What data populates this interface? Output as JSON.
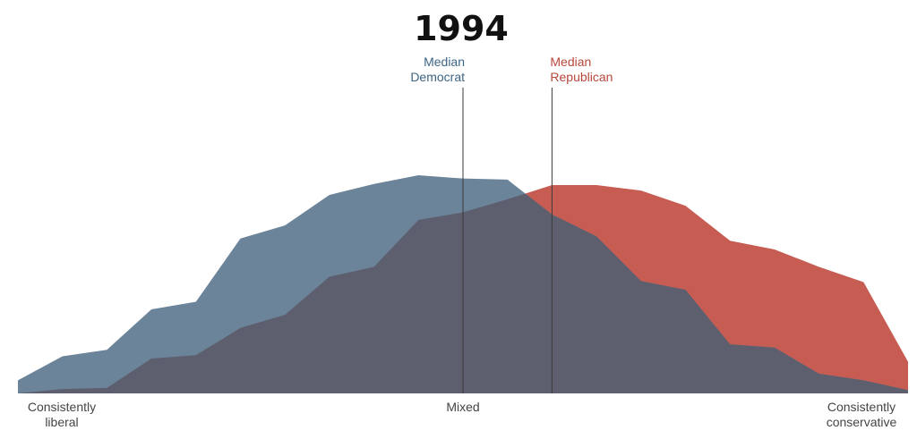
{
  "chart_data": {
    "type": "area",
    "title": "1994",
    "x": [
      0,
      1,
      2,
      3,
      4,
      5,
      6,
      7,
      8,
      9,
      10,
      11,
      12,
      13,
      14,
      15,
      16,
      17,
      18,
      19,
      20
    ],
    "xlim": [
      0,
      20
    ],
    "ylim": [
      0,
      100
    ],
    "x_tick_labels": [
      {
        "x": 0,
        "lines": [
          "Consistently",
          "liberal"
        ]
      },
      {
        "x": 10,
        "lines": [
          "Mixed"
        ]
      },
      {
        "x": 20,
        "lines": [
          "Consistently",
          "conservative"
        ]
      }
    ],
    "series": [
      {
        "key": "republican",
        "color": "#c75c53",
        "values": [
          0,
          2,
          2.5,
          16,
          17.5,
          30,
          36,
          53.5,
          58,
          79.5,
          83,
          89,
          95.5,
          95.5,
          93,
          86,
          70,
          66,
          58,
          51,
          14.5
        ]
      },
      {
        "key": "democrat",
        "color": "#6b8499",
        "values": [
          6,
          17,
          20,
          38.5,
          42,
          71,
          77,
          91,
          96,
          100,
          98.5,
          98,
          82,
          72,
          51.5,
          47.5,
          22.5,
          21,
          9,
          6,
          1.5
        ]
      }
    ],
    "overlap_color": "#5d5e6e",
    "medians": [
      {
        "label_lines": [
          "Median",
          "Democrat"
        ],
        "x": 10,
        "color": "#3e6584"
      },
      {
        "label_lines": [
          "Median",
          "Republican"
        ],
        "x": 12,
        "color": "#b9473b"
      }
    ],
    "grid": false,
    "legend": "none"
  }
}
